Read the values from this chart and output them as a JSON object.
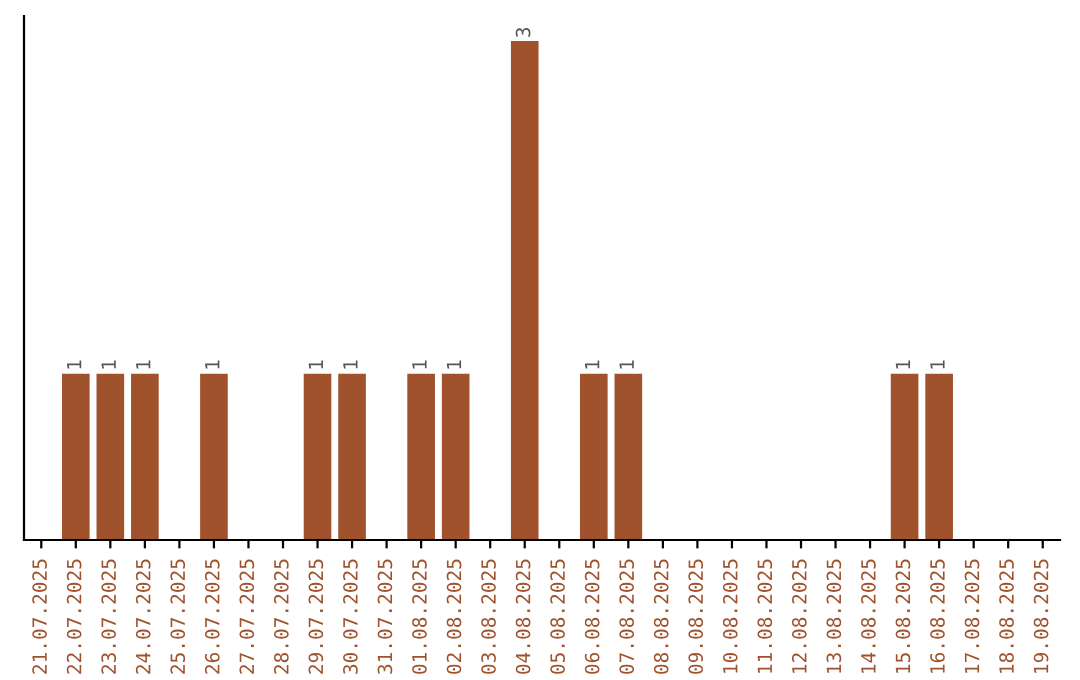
{
  "chart_data": {
    "type": "bar",
    "categories": [
      "21.07.2025",
      "22.07.2025",
      "23.07.2025",
      "24.07.2025",
      "25.07.2025",
      "26.07.2025",
      "27.07.2025",
      "28.07.2025",
      "29.07.2025",
      "30.07.2025",
      "31.07.2025",
      "01.08.2025",
      "02.08.2025",
      "03.08.2025",
      "04.08.2025",
      "05.08.2025",
      "06.08.2025",
      "07.08.2025",
      "08.08.2025",
      "09.08.2025",
      "10.08.2025",
      "11.08.2025",
      "12.08.2025",
      "13.08.2025",
      "14.08.2025",
      "15.08.2025",
      "16.08.2025",
      "17.08.2025",
      "18.08.2025",
      "19.08.2025"
    ],
    "values": [
      0,
      1,
      1,
      1,
      0,
      1,
      0,
      0,
      1,
      1,
      0,
      1,
      1,
      0,
      3,
      0,
      1,
      1,
      0,
      0,
      0,
      0,
      0,
      0,
      0,
      1,
      1,
      0,
      0,
      0
    ],
    "value_labels": [
      null,
      "1",
      "1",
      "1",
      null,
      "1",
      null,
      null,
      "1",
      "1",
      null,
      "1",
      "1",
      null,
      "3",
      null,
      "1",
      "1",
      null,
      null,
      null,
      null,
      null,
      null,
      null,
      "1",
      "1",
      null,
      null,
      null
    ],
    "color": "#a0522d",
    "tick_labels": "x",
    "grid": false,
    "legend": false
  }
}
